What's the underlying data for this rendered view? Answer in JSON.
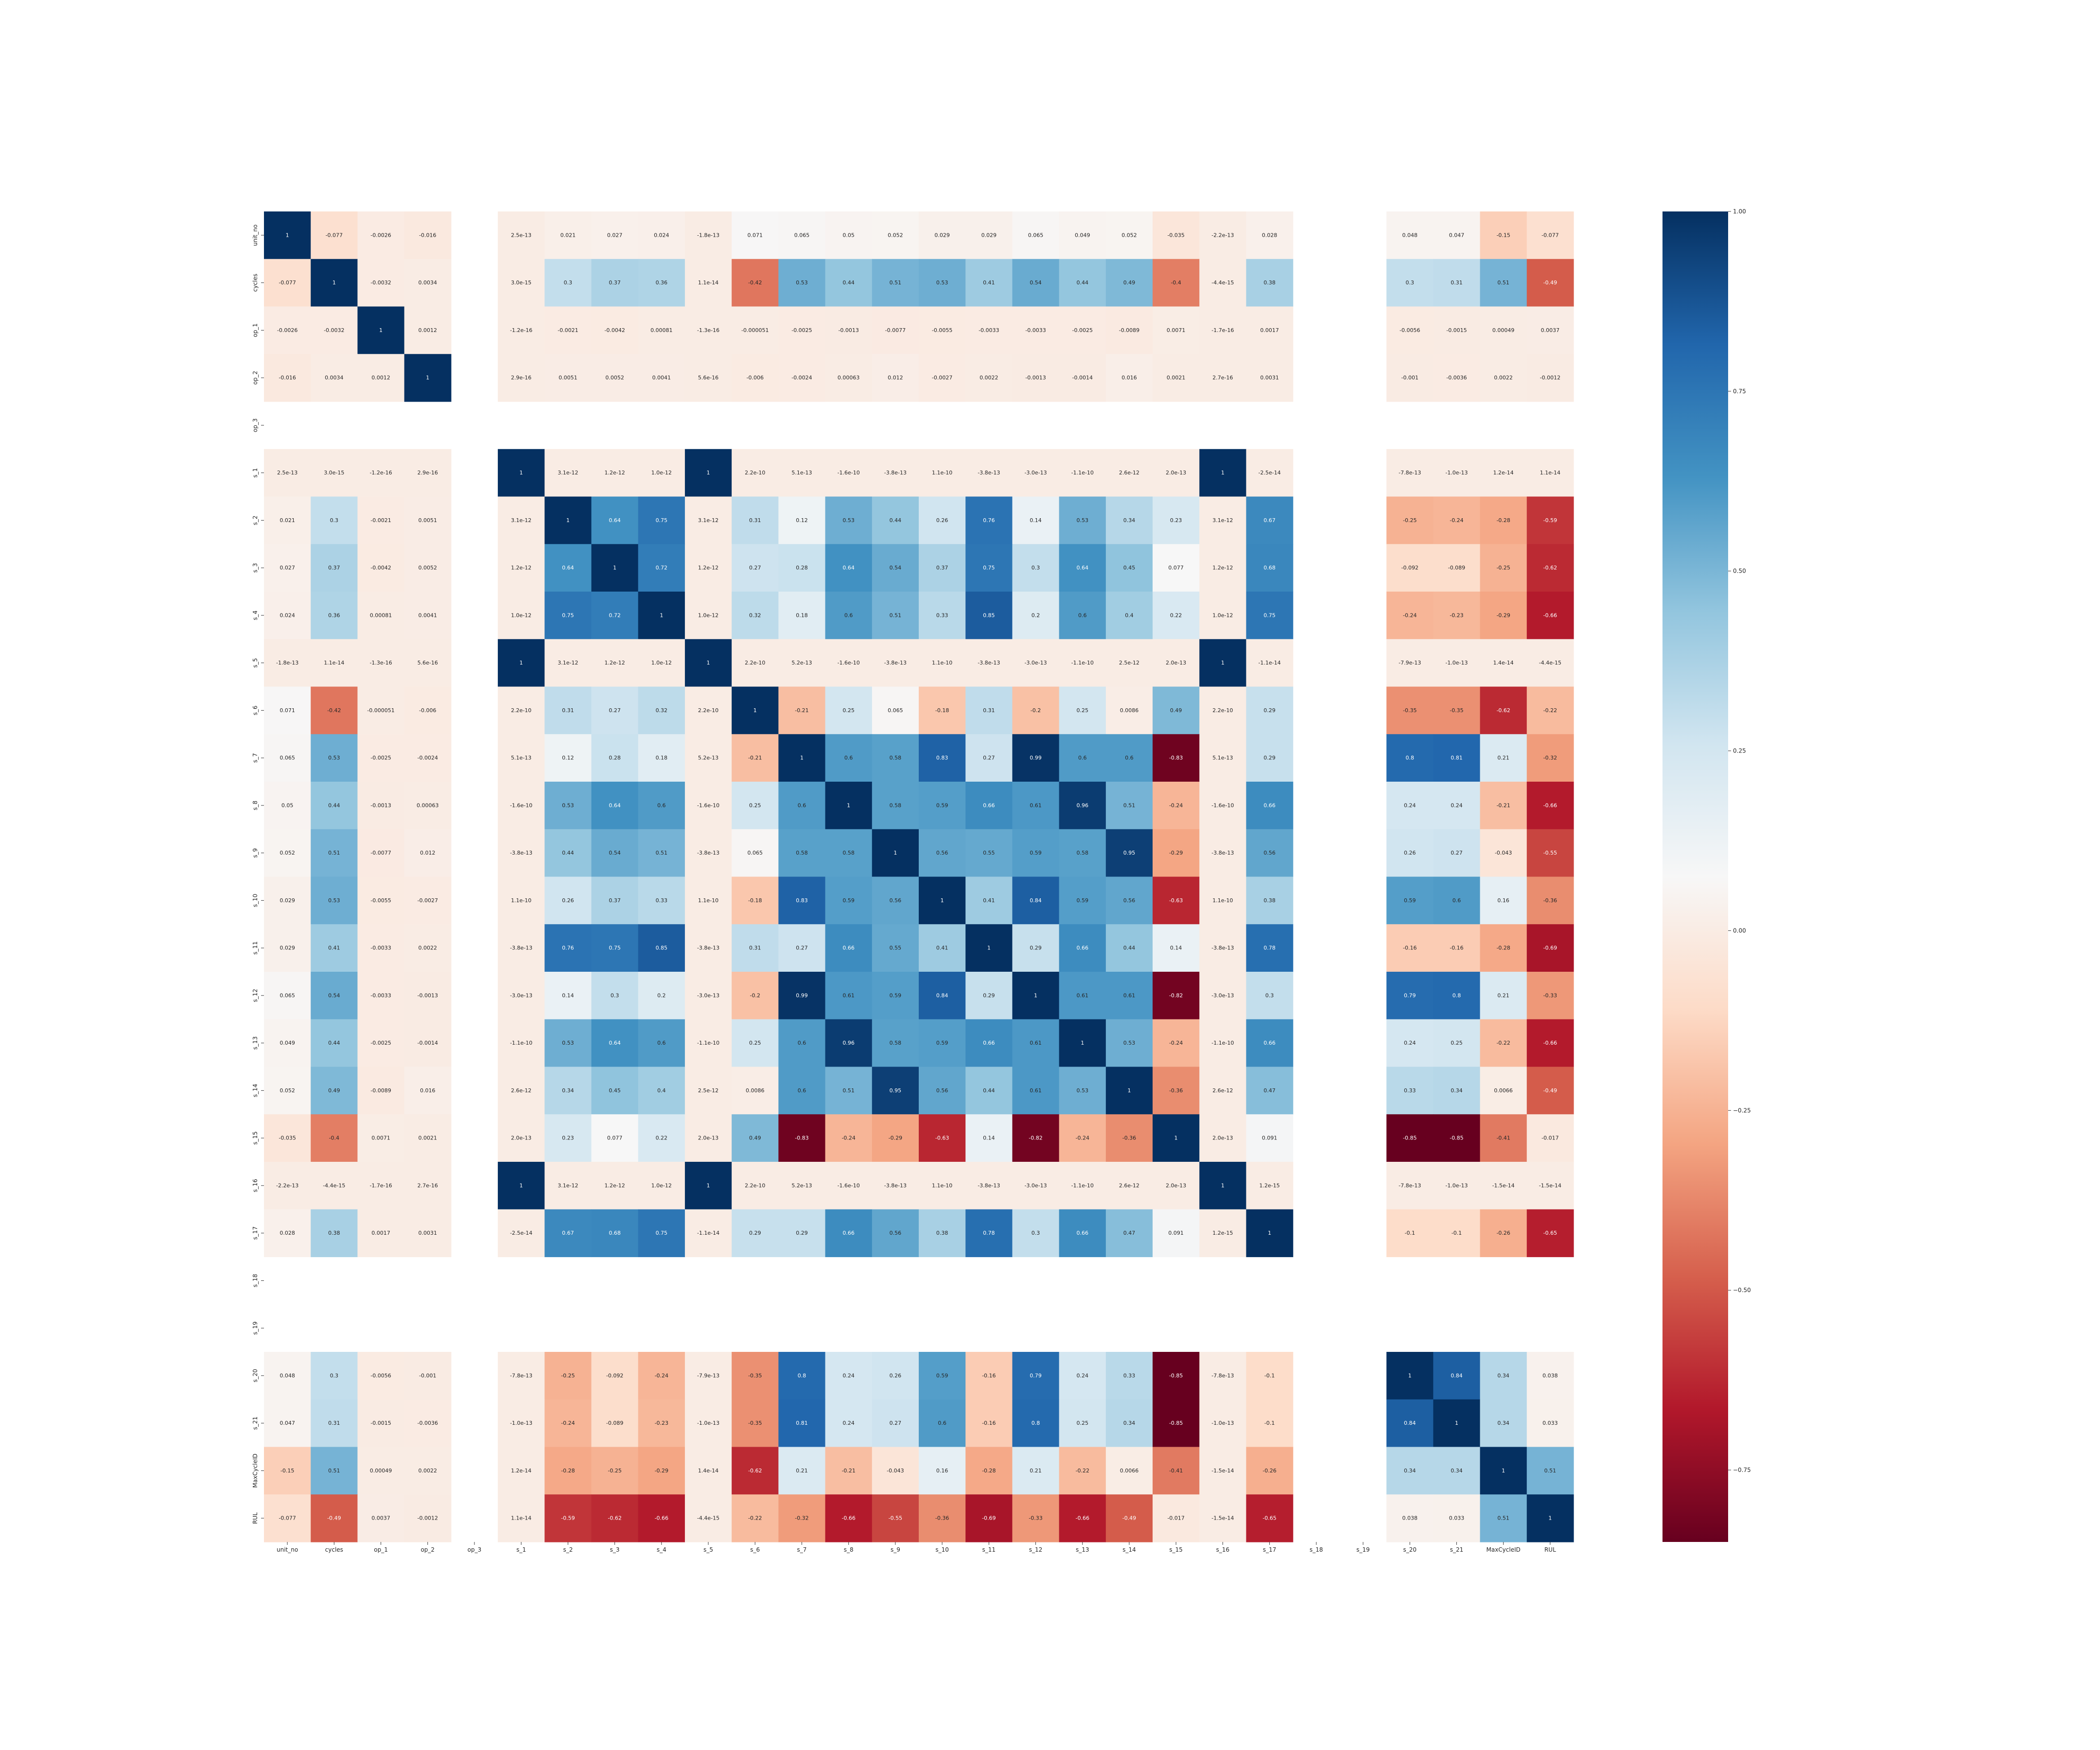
{
  "chart_data": {
    "type": "heatmap",
    "title": "",
    "xlabel": "",
    "ylabel": "",
    "labels": [
      "unit_no",
      "cycles",
      "op_1",
      "op_2",
      "op_3",
      "s_1",
      "s_2",
      "s_3",
      "s_4",
      "s_5",
      "s_6",
      "s_7",
      "s_8",
      "s_9",
      "s_10",
      "s_11",
      "s_12",
      "s_13",
      "s_14",
      "s_15",
      "s_16",
      "s_17",
      "s_18",
      "s_19",
      "s_20",
      "s_21",
      "MaxCycleID",
      "RUL"
    ],
    "matrix": [
      [
        1,
        -0.077,
        -0.0026,
        -0.016,
        null,
        2.5e-13,
        0.021,
        0.027,
        0.024,
        -1.8e-13,
        0.071,
        0.065,
        0.05,
        0.052,
        0.029,
        0.029,
        0.065,
        0.049,
        0.052,
        -0.035,
        -2.2e-13,
        0.028,
        null,
        null,
        0.048,
        0.047,
        -0.15,
        -0.077
      ],
      [
        -0.077,
        1,
        -0.0032,
        0.0034,
        null,
        3e-15,
        0.3,
        0.37,
        0.36,
        1.1e-14,
        -0.42,
        0.53,
        0.44,
        0.51,
        0.53,
        0.41,
        0.54,
        0.44,
        0.49,
        -0.4,
        -4.4e-15,
        0.38,
        null,
        null,
        0.3,
        0.31,
        0.51,
        -0.49
      ],
      [
        -0.0026,
        -0.0032,
        1,
        0.0012,
        null,
        -1.2e-16,
        -0.0021,
        -0.0042,
        0.00081,
        -1.3e-16,
        -5.1e-05,
        -0.0025,
        -0.0013,
        -0.0077,
        -0.0055,
        -0.0033,
        -0.0033,
        -0.0025,
        -0.0089,
        0.0071,
        -1.7e-16,
        0.0017,
        null,
        null,
        -0.0056,
        -0.0015,
        0.00049,
        0.0037
      ],
      [
        -0.016,
        0.0034,
        0.0012,
        1,
        null,
        2.9e-16,
        0.0051,
        0.0052,
        0.0041,
        5.6e-16,
        -0.006,
        -0.0024,
        0.00063,
        0.012,
        -0.0027,
        0.0022,
        -0.0013,
        -0.0014,
        0.016,
        0.0021,
        2.7e-16,
        0.0031,
        null,
        null,
        -0.001,
        -0.0036,
        0.0022,
        -0.0012
      ],
      [
        null,
        null,
        null,
        null,
        null,
        null,
        null,
        null,
        null,
        null,
        null,
        null,
        null,
        null,
        null,
        null,
        null,
        null,
        null,
        null,
        null,
        null,
        null,
        null,
        null,
        null,
        null,
        null
      ],
      [
        2.5e-13,
        3e-15,
        -1.2e-16,
        2.9e-16,
        null,
        1,
        3.1e-12,
        1.2e-12,
        1e-12,
        1,
        2.2e-10,
        5.1e-13,
        -1.6e-10,
        -3.8e-13,
        1.1e-10,
        -3.8e-13,
        -3e-13,
        -1.1e-10,
        2.6e-12,
        2e-13,
        1,
        -2.5e-14,
        null,
        null,
        -7.8e-13,
        -1e-13,
        1.2e-14,
        1.1e-14
      ],
      [
        0.021,
        0.3,
        -0.0021,
        0.0051,
        null,
        3.1e-12,
        1,
        0.64,
        0.75,
        3.1e-12,
        0.31,
        0.12,
        0.53,
        0.44,
        0.26,
        0.76,
        0.14,
        0.53,
        0.34,
        0.23,
        3.1e-12,
        0.67,
        null,
        null,
        -0.25,
        -0.24,
        -0.28,
        -0.59
      ],
      [
        0.027,
        0.37,
        -0.0042,
        0.0052,
        null,
        1.2e-12,
        0.64,
        1,
        0.72,
        1.2e-12,
        0.27,
        0.28,
        0.64,
        0.54,
        0.37,
        0.75,
        0.3,
        0.64,
        0.45,
        0.077,
        1.2e-12,
        0.68,
        null,
        null,
        -0.092,
        -0.089,
        -0.25,
        -0.62
      ],
      [
        0.024,
        0.36,
        0.00081,
        0.0041,
        null,
        1e-12,
        0.75,
        0.72,
        1,
        1e-12,
        0.32,
        0.18,
        0.6,
        0.51,
        0.33,
        0.85,
        0.2,
        0.6,
        0.4,
        0.22,
        1e-12,
        0.75,
        null,
        null,
        -0.24,
        -0.23,
        -0.29,
        -0.66
      ],
      [
        -1.8e-13,
        1.1e-14,
        -1.3e-16,
        5.6e-16,
        null,
        1,
        3.1e-12,
        1.2e-12,
        1e-12,
        1,
        2.2e-10,
        5.2e-13,
        -1.6e-10,
        -3.8e-13,
        1.1e-10,
        -3.8e-13,
        -3e-13,
        -1.1e-10,
        2.5e-12,
        2e-13,
        1,
        -1.1e-14,
        null,
        null,
        -7.9e-13,
        -1e-13,
        1.4e-14,
        -4.4e-15
      ],
      [
        0.071,
        -0.42,
        -5.1e-05,
        -0.006,
        null,
        2.2e-10,
        0.31,
        0.27,
        0.32,
        2.2e-10,
        1,
        -0.21,
        0.25,
        0.065,
        -0.18,
        0.31,
        -0.2,
        0.25,
        0.0086,
        0.49,
        2.2e-10,
        0.29,
        null,
        null,
        -0.35,
        -0.35,
        -0.62,
        -0.22
      ],
      [
        0.065,
        0.53,
        -0.0025,
        -0.0024,
        null,
        5.1e-13,
        0.12,
        0.28,
        0.18,
        5.2e-13,
        -0.21,
        1,
        0.6,
        0.58,
        0.83,
        0.27,
        0.99,
        0.6,
        0.6,
        -0.83,
        5.1e-13,
        0.29,
        null,
        null,
        0.8,
        0.81,
        0.21,
        -0.32
      ],
      [
        0.05,
        0.44,
        -0.0013,
        0.00063,
        null,
        -1.6e-10,
        0.53,
        0.64,
        0.6,
        -1.6e-10,
        0.25,
        0.6,
        1,
        0.58,
        0.59,
        0.66,
        0.61,
        0.96,
        0.51,
        -0.24,
        -1.6e-10,
        0.66,
        null,
        null,
        0.24,
        0.24,
        -0.21,
        -0.66
      ],
      [
        0.052,
        0.51,
        -0.0077,
        0.012,
        null,
        -3.8e-13,
        0.44,
        0.54,
        0.51,
        -3.8e-13,
        0.065,
        0.58,
        0.58,
        1,
        0.56,
        0.55,
        0.59,
        0.58,
        0.95,
        -0.29,
        -3.8e-13,
        0.56,
        null,
        null,
        0.26,
        0.27,
        -0.043,
        -0.55
      ],
      [
        0.029,
        0.53,
        -0.0055,
        -0.0027,
        null,
        1.1e-10,
        0.26,
        0.37,
        0.33,
        1.1e-10,
        -0.18,
        0.83,
        0.59,
        0.56,
        1,
        0.41,
        0.84,
        0.59,
        0.56,
        -0.63,
        1.1e-10,
        0.38,
        null,
        null,
        0.59,
        0.6,
        0.16,
        -0.36
      ],
      [
        0.029,
        0.41,
        -0.0033,
        0.0022,
        null,
        -3.8e-13,
        0.76,
        0.75,
        0.85,
        -3.8e-13,
        0.31,
        0.27,
        0.66,
        0.55,
        0.41,
        1,
        0.29,
        0.66,
        0.44,
        0.14,
        -3.8e-13,
        0.78,
        null,
        null,
        -0.16,
        -0.16,
        -0.28,
        -0.69
      ],
      [
        0.065,
        0.54,
        -0.0033,
        -0.0013,
        null,
        -3e-13,
        0.14,
        0.3,
        0.2,
        -3e-13,
        -0.2,
        0.99,
        0.61,
        0.59,
        0.84,
        0.29,
        1,
        0.61,
        0.61,
        -0.82,
        -3e-13,
        0.3,
        null,
        null,
        0.79,
        0.8,
        0.21,
        -0.33
      ],
      [
        0.049,
        0.44,
        -0.0025,
        -0.0014,
        null,
        -1.1e-10,
        0.53,
        0.64,
        0.6,
        -1.1e-10,
        0.25,
        0.6,
        0.96,
        0.58,
        0.59,
        0.66,
        0.61,
        1,
        0.53,
        -0.24,
        -1.1e-10,
        0.66,
        null,
        null,
        0.24,
        0.25,
        -0.22,
        -0.66
      ],
      [
        0.052,
        0.49,
        -0.0089,
        0.016,
        null,
        2.6e-12,
        0.34,
        0.45,
        0.4,
        2.5e-12,
        0.0086,
        0.6,
        0.51,
        0.95,
        0.56,
        0.44,
        0.61,
        0.53,
        1,
        -0.36,
        2.6e-12,
        0.47,
        null,
        null,
        0.33,
        0.34,
        0.0066,
        -0.49
      ],
      [
        -0.035,
        -0.4,
        0.0071,
        0.0021,
        null,
        2e-13,
        0.23,
        0.077,
        0.22,
        2e-13,
        0.49,
        -0.83,
        -0.24,
        -0.29,
        -0.63,
        0.14,
        -0.82,
        -0.24,
        -0.36,
        1,
        2e-13,
        0.091,
        null,
        null,
        -0.85,
        -0.85,
        -0.41,
        -0.017
      ],
      [
        -2.2e-13,
        -4.4e-15,
        -1.7e-16,
        2.7e-16,
        null,
        1,
        3.1e-12,
        1.2e-12,
        1e-12,
        1,
        2.2e-10,
        5.2e-13,
        -1.6e-10,
        -3.8e-13,
        1.1e-10,
        -3.8e-13,
        -3e-13,
        -1.1e-10,
        2.6e-12,
        2e-13,
        1,
        1.2e-15,
        null,
        null,
        -7.8e-13,
        -1e-13,
        -1.5e-14,
        -1.5e-14
      ],
      [
        0.028,
        0.38,
        0.0017,
        0.0031,
        null,
        -2.5e-14,
        0.67,
        0.68,
        0.75,
        -1.1e-14,
        0.29,
        0.29,
        0.66,
        0.56,
        0.38,
        0.78,
        0.3,
        0.66,
        0.47,
        0.091,
        1.2e-15,
        1,
        null,
        null,
        -0.1,
        -0.1,
        -0.26,
        -0.65
      ],
      [
        null,
        null,
        null,
        null,
        null,
        null,
        null,
        null,
        null,
        null,
        null,
        null,
        null,
        null,
        null,
        null,
        null,
        null,
        null,
        null,
        null,
        null,
        null,
        null,
        null,
        null,
        null,
        null
      ],
      [
        null,
        null,
        null,
        null,
        null,
        null,
        null,
        null,
        null,
        null,
        null,
        null,
        null,
        null,
        null,
        null,
        null,
        null,
        null,
        null,
        null,
        null,
        null,
        null,
        null,
        null,
        null,
        null
      ],
      [
        0.048,
        0.3,
        -0.0056,
        -0.001,
        null,
        -7.8e-13,
        -0.25,
        -0.092,
        -0.24,
        -7.9e-13,
        -0.35,
        0.8,
        0.24,
        0.26,
        0.59,
        -0.16,
        0.79,
        0.24,
        0.33,
        -0.85,
        -7.8e-13,
        -0.1,
        null,
        null,
        1,
        0.84,
        0.34,
        0.038
      ],
      [
        0.047,
        0.31,
        -0.0015,
        -0.0036,
        null,
        -1e-13,
        -0.24,
        -0.089,
        -0.23,
        -1e-13,
        -0.35,
        0.81,
        0.24,
        0.27,
        0.6,
        -0.16,
        0.8,
        0.25,
        0.34,
        -0.85,
        -1e-13,
        -0.1,
        null,
        null,
        0.84,
        1,
        0.34,
        0.033
      ],
      [
        -0.15,
        0.51,
        0.00049,
        0.0022,
        null,
        1.2e-14,
        -0.28,
        -0.25,
        -0.29,
        1.4e-14,
        -0.62,
        0.21,
        -0.21,
        -0.043,
        0.16,
        -0.28,
        0.21,
        -0.22,
        0.0066,
        -0.41,
        -1.5e-14,
        -0.26,
        null,
        null,
        0.34,
        0.34,
        1,
        0.51
      ],
      [
        -0.077,
        -0.49,
        0.0037,
        -0.0012,
        null,
        1.1e-14,
        -0.59,
        -0.62,
        -0.66,
        -4.4e-15,
        -0.22,
        -0.32,
        -0.66,
        -0.55,
        -0.36,
        -0.69,
        -0.33,
        -0.66,
        -0.49,
        -0.017,
        -1.5e-14,
        -0.65,
        null,
        null,
        0.038,
        0.033,
        0.51,
        1
      ]
    ],
    "colorbar": {
      "ticks": [
        "1.00",
        "0.75",
        "0.50",
        "0.25",
        "0.00",
        "−0.25",
        "−0.50",
        "−0.75"
      ],
      "tick_values": [
        1.0,
        0.75,
        0.5,
        0.25,
        0.0,
        -0.25,
        -0.5,
        -0.75
      ],
      "range": [
        -0.85,
        1.0
      ]
    },
    "colormap": [
      "#67001f",
      "#b2182b",
      "#d6604d",
      "#f4a582",
      "#fddbc7",
      "#f7f7f7",
      "#d1e5f0",
      "#92c5de",
      "#4393c3",
      "#2166ac",
      "#053061"
    ],
    "legend": "right",
    "grid": false
  }
}
